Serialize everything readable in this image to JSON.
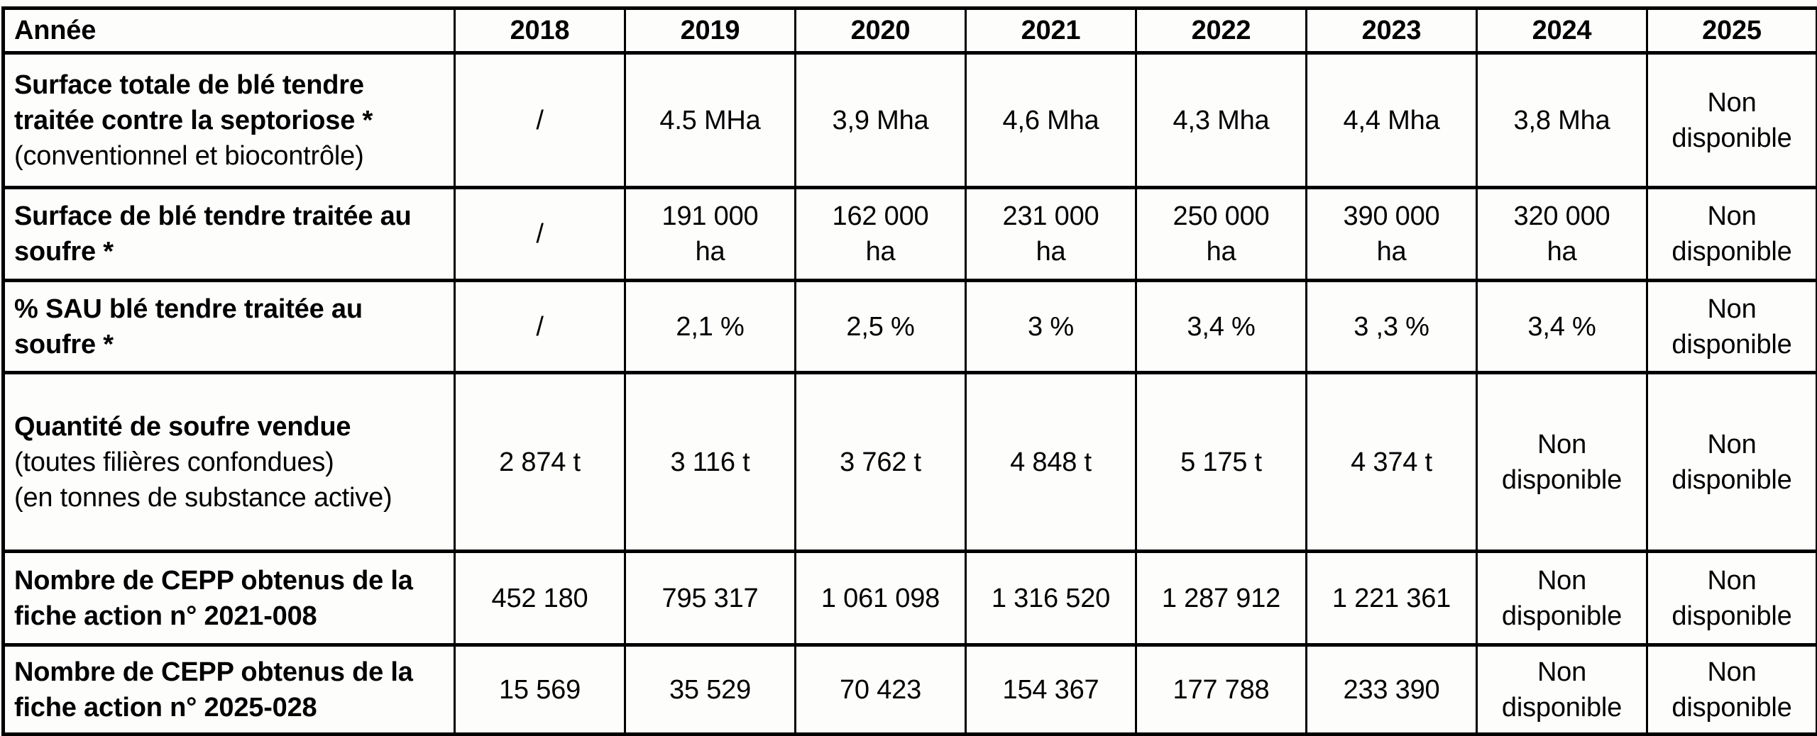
{
  "colors": {
    "border": "#000000",
    "text": "#000000",
    "background": "#fcfcfb"
  },
  "table": {
    "header": {
      "label": "Année",
      "years": [
        "2018",
        "2019",
        "2020",
        "2021",
        "2022",
        "2023",
        "2024",
        "2025"
      ]
    },
    "rows": [
      {
        "title": "Surface totale de blé tendre traitée contre la septoriose *",
        "subtitle": "(conventionnel et biocontrôle)",
        "values": [
          "/",
          "4.5 MHa",
          "3,9 Mha",
          "4,6 Mha",
          "4,3 Mha",
          "4,4 Mha",
          "3,8 Mha",
          "Non\ndisponible"
        ]
      },
      {
        "title": "Surface de blé tendre traitée au soufre *",
        "subtitle": "",
        "values": [
          "/",
          "191 000\nha",
          "162 000\nha",
          "231 000\nha",
          "250 000\nha",
          "390 000\nha",
          "320 000\nha",
          "Non\ndisponible"
        ]
      },
      {
        "title": "% SAU blé tendre traitée au soufre *",
        "subtitle": "",
        "values": [
          "/",
          "2,1 %",
          "2,5 %",
          "3 %",
          "3,4 %",
          "3 ,3 %",
          "3,4 %",
          "Non\ndisponible"
        ]
      },
      {
        "title": "Quantité de soufre vendue",
        "subtitle": "(toutes filières confondues)\n(en tonnes de substance active)",
        "values": [
          "2 874 t",
          "3 116 t",
          "3 762 t",
          "4 848 t",
          "5 175 t",
          "4 374 t",
          "Non\ndisponible",
          "Non\ndisponible"
        ]
      },
      {
        "title": "Nombre de CEPP obtenus de la fiche action n° 2021-008",
        "subtitle": "",
        "values": [
          "452 180",
          "795 317",
          "1 061 098",
          "1 316 520",
          "1 287 912",
          "1 221 361",
          "Non\ndisponible",
          "Non\ndisponible"
        ]
      },
      {
        "title": "Nombre de CEPP obtenus de la fiche action n° 2025-028",
        "subtitle": "",
        "values": [
          "15 569",
          "35 529",
          "70 423",
          "154 367",
          "177 788",
          "233 390",
          "Non\ndisponible",
          "Non\ndisponible"
        ]
      }
    ]
  }
}
